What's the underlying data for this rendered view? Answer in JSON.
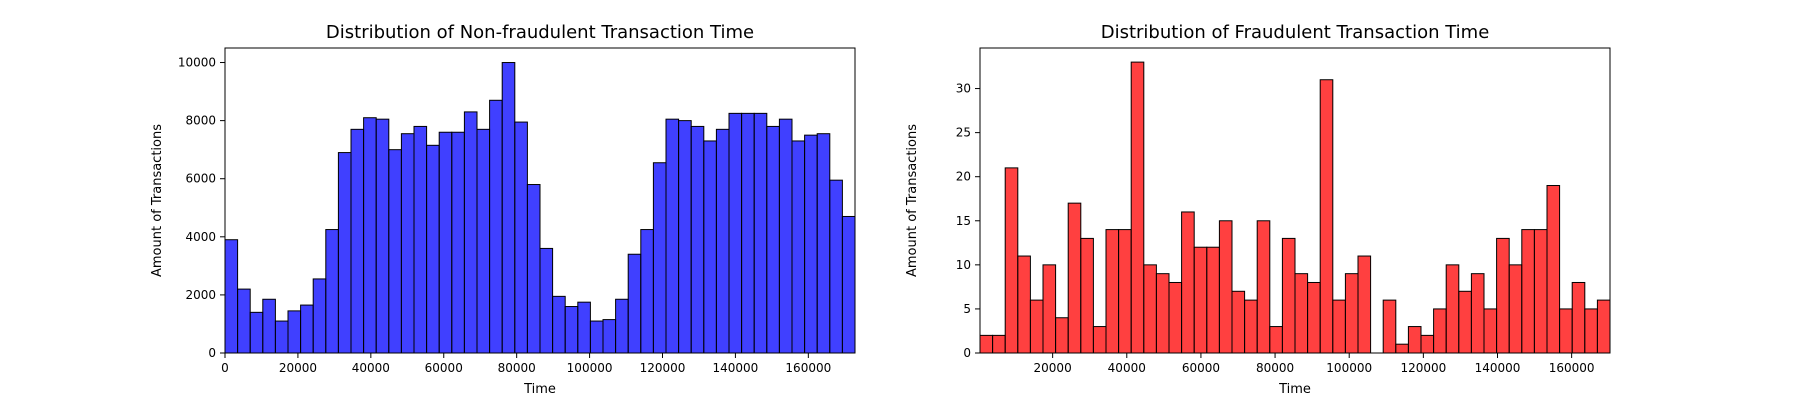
{
  "chart_data": [
    {
      "type": "histogram",
      "title": "Distribution of Non-fraudulent Transaction Time",
      "xlabel": "Time",
      "ylabel": "Amount of Transactions",
      "xlim": [
        0,
        172800
      ],
      "ylim": [
        0,
        10500
      ],
      "xticks": [
        0,
        20000,
        40000,
        60000,
        80000,
        100000,
        120000,
        140000,
        160000
      ],
      "yticks": [
        0,
        2000,
        4000,
        6000,
        8000,
        10000
      ],
      "bin_start": 0,
      "bin_width": 3456,
      "bar_color": "#0000ff",
      "bar_opacity": 0.75,
      "grid": false,
      "values": [
        3900,
        2200,
        1400,
        1850,
        1100,
        1450,
        1650,
        2550,
        4250,
        6900,
        7700,
        8100,
        8050,
        7000,
        7550,
        7800,
        7150,
        7600,
        7600,
        8300,
        7700,
        8700,
        10000,
        7950,
        5800,
        3600,
        1950,
        1600,
        1750,
        1100,
        1150,
        1850,
        3400,
        4250,
        6550,
        8050,
        8000,
        7800,
        7300,
        7700,
        8250,
        8250,
        8250,
        7800,
        8050,
        7300,
        7500,
        7550,
        5950,
        4700
      ]
    },
    {
      "type": "histogram",
      "title": "Distribution of Fraudulent Transaction Time",
      "xlabel": "Time",
      "ylabel": "Amount of Transactions",
      "xlim": [
        406,
        170348
      ],
      "ylim": [
        0,
        34.6
      ],
      "xticks": [
        20000,
        40000,
        60000,
        80000,
        100000,
        120000,
        140000,
        160000
      ],
      "yticks": [
        0,
        5,
        10,
        15,
        20,
        25,
        30
      ],
      "bin_start": 406,
      "bin_width": 3398.84,
      "bar_color": "#ff0000",
      "bar_opacity": 0.75,
      "grid": false,
      "values": [
        2,
        2,
        21,
        11,
        6,
        10,
        4,
        17,
        13,
        3,
        14,
        14,
        33,
        10,
        9,
        8,
        16,
        12,
        12,
        15,
        7,
        6,
        15,
        3,
        13,
        9,
        8,
        31,
        6,
        9,
        11,
        0,
        6,
        1,
        3,
        2,
        5,
        10,
        7,
        9,
        5,
        13,
        10,
        14,
        14,
        19,
        5,
        8,
        5,
        6
      ]
    }
  ]
}
